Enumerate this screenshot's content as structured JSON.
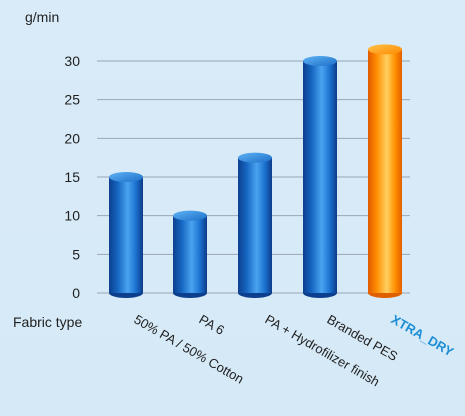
{
  "chart_data": {
    "type": "bar",
    "ylabel": "g/min",
    "xlabel": "Fabric type",
    "categories": [
      "50% PA / 50% Cotton",
      "PA 6",
      "PA + Hydrofilizer finish",
      "Branded PES",
      "XTRA_DRY"
    ],
    "values": [
      15,
      10,
      17.5,
      30,
      31.5
    ],
    "ylim": [
      0,
      30
    ],
    "yticks": [
      0,
      5,
      10,
      15,
      20,
      25,
      30
    ],
    "grid": true,
    "colors": {
      "default_bar": "#1565c0",
      "highlight_bar": "#ff8c00",
      "highlight_label": "#1e8fd6",
      "grid": "#9aa6b2",
      "background": "#d8eaf7"
    },
    "highlight_index": 4
  }
}
